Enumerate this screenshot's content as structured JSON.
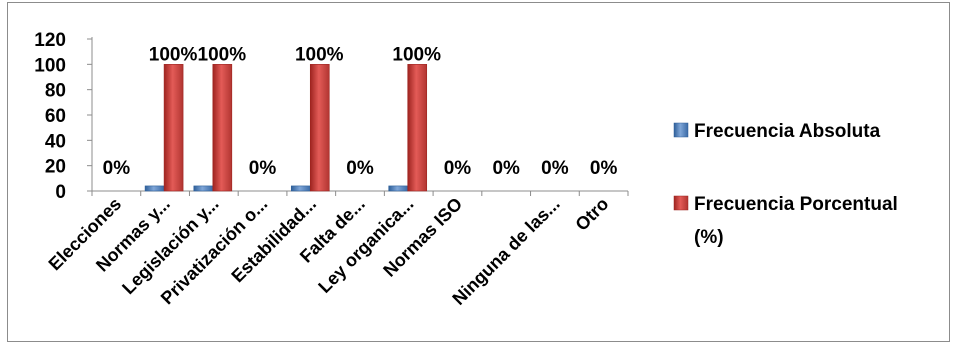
{
  "chart_data": {
    "type": "bar",
    "categories": [
      "Elecciones",
      "Normas y...",
      "Legislación y...",
      "Privatización o...",
      "Estabilidad...",
      "Falta de...",
      "Ley organica...",
      "Normas ISO",
      "",
      "Ninguna de las...",
      "Otro"
    ],
    "series": [
      {
        "name": "Frecuencia Absoluta",
        "color": "#4f81bd",
        "values": [
          0,
          4,
          4,
          0,
          4,
          0,
          4,
          0,
          0,
          0,
          0
        ]
      },
      {
        "name": "Frecuencia Porcentual (%)",
        "color": "#c0504d",
        "values": [
          0,
          100,
          100,
          0,
          100,
          0,
          100,
          0,
          0,
          0,
          0
        ]
      }
    ],
    "data_labels": [
      "0%",
      "100%",
      "100%",
      "0%",
      "100%",
      "0%",
      "100%",
      "0%",
      "0%",
      "0%",
      "0%"
    ],
    "y_ticks": [
      "0",
      "20",
      "40",
      "60",
      "80",
      "100",
      "120"
    ],
    "ylim": [
      0,
      120
    ],
    "legend_position": "right",
    "legend": {
      "absolute": "Frecuencia Absoluta",
      "percent_line1": "Frecuencia Porcentual",
      "percent_line2": "(%)"
    },
    "title": "",
    "xlabel": "",
    "ylabel": "",
    "grid": false
  }
}
